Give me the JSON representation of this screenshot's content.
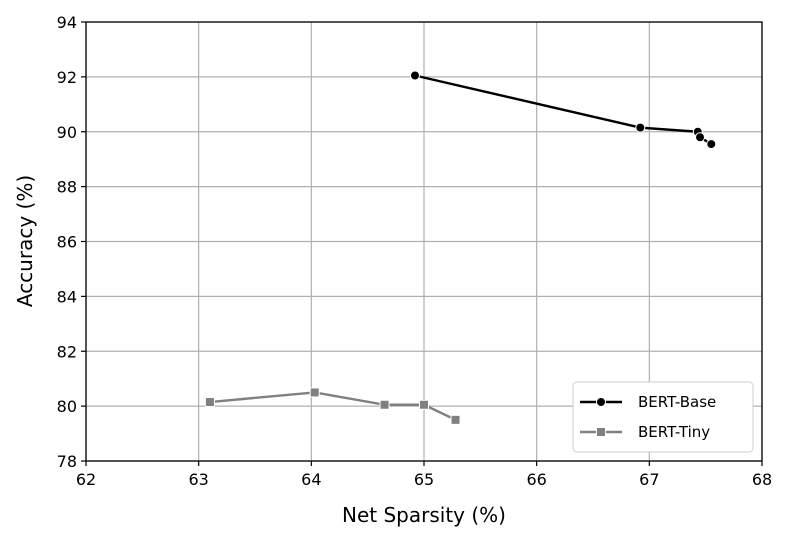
{
  "chart_data": {
    "type": "line",
    "xlabel": "Net Sparsity (%)",
    "ylabel": "Accuracy (%)",
    "xlim": [
      62,
      68
    ],
    "ylim": [
      78,
      94
    ],
    "xticks": [
      "62",
      "63",
      "64",
      "65",
      "66",
      "67",
      "68"
    ],
    "yticks": [
      "78",
      "80",
      "82",
      "84",
      "86",
      "88",
      "90",
      "92",
      "94"
    ],
    "grid": true,
    "legend_position": "bottom-right",
    "series": [
      {
        "name": "BERT-Base",
        "color": "#000000",
        "marker": "circle",
        "x": [
          64.92,
          66.92,
          67.43,
          67.45,
          67.55
        ],
        "y": [
          92.05,
          90.15,
          90.0,
          89.8,
          89.55
        ]
      },
      {
        "name": "BERT-Tiny",
        "color": "#808080",
        "marker": "square",
        "x": [
          63.1,
          64.03,
          64.65,
          65.0,
          65.28
        ],
        "y": [
          80.15,
          80.5,
          80.05,
          80.05,
          79.5
        ]
      }
    ]
  }
}
